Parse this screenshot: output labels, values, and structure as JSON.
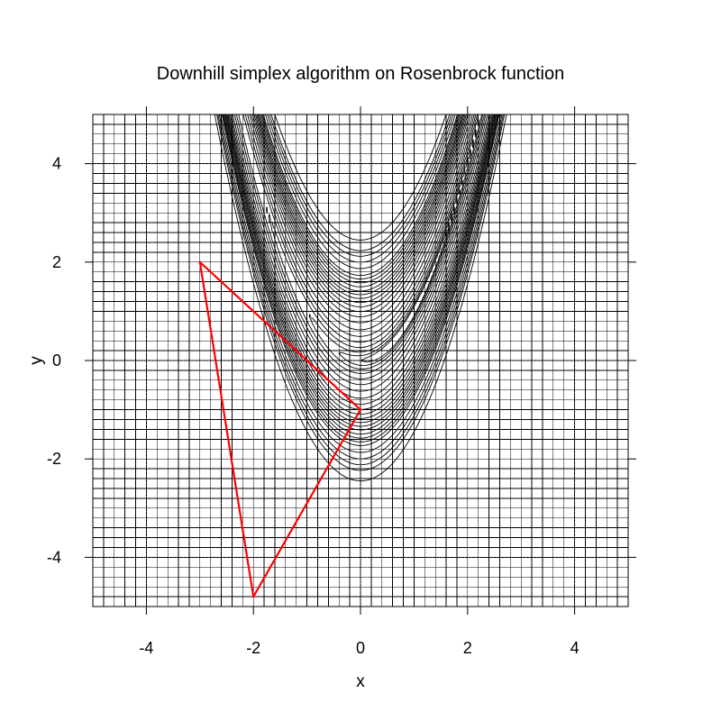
{
  "chart_data": {
    "type": "line",
    "title": "Downhill simplex algorithm on Rosenbrock function",
    "xlabel": "x",
    "ylabel": "y",
    "xlim": [
      -5,
      5
    ],
    "ylim": [
      -5,
      5
    ],
    "x_ticks": [
      -4,
      -2,
      0,
      2,
      4
    ],
    "y_ticks": [
      -4,
      -2,
      0,
      2,
      4
    ],
    "x_tick_labels": [
      "-4",
      "-2",
      "0",
      "2",
      "4"
    ],
    "y_tick_labels": [
      "-4",
      "-2",
      "0",
      "2",
      "4"
    ],
    "grid": true,
    "grid_step": 0.2,
    "contour": {
      "function": "Rosenbrock",
      "color": "#000000",
      "levels": [
        1,
        2,
        4,
        8,
        15,
        25,
        40,
        60,
        80,
        100,
        120,
        140,
        160,
        180,
        200,
        225,
        250,
        275,
        300,
        350,
        400,
        450,
        500,
        600
      ]
    },
    "series": [
      {
        "color": "#ff0000",
        "points": [
          {
            "x": -3.0,
            "y": 2.0
          },
          {
            "x": 0.0,
            "y": -1.0
          },
          {
            "x": -2.0,
            "y": -4.8
          },
          {
            "x": -3.0,
            "y": 2.0
          }
        ]
      }
    ]
  }
}
